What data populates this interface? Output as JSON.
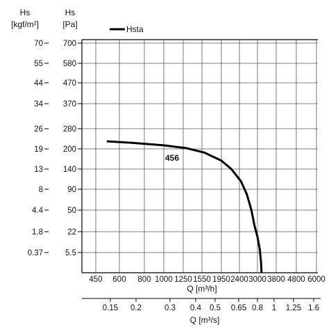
{
  "chart_data": {
    "type": "line",
    "title": "",
    "legend": {
      "label": "Hsta",
      "placement": "top-left"
    },
    "model_label": "456",
    "left_axis": {
      "unit_name": "Hs",
      "unit": "[kgf/m²]",
      "ticks": [
        "70",
        "55",
        "44",
        "34",
        "26",
        "19",
        "13",
        "8",
        "4.4",
        "1.8",
        "0.37"
      ]
    },
    "right_axis": {
      "unit_name": "Hs",
      "unit": "[Pa]",
      "ticks": [
        "700",
        "580",
        "470",
        "370",
        "280",
        "200",
        "140",
        "90",
        "50",
        "22",
        "5.5"
      ]
    },
    "x_axis": {
      "label": "Q [m³/h]",
      "ticks": [
        "450",
        "600",
        "800",
        "1000",
        "1250",
        "1550",
        "1950",
        "2400",
        "3000",
        "3800",
        "4800",
        "6000"
      ]
    },
    "x_axis_secondary": {
      "label": "Q [m³/s]",
      "ticks": [
        "0.15",
        "0.2",
        "0.3",
        "0.4",
        "0.5",
        "0.65",
        "0.8",
        "1",
        "1.25",
        "1.6"
      ]
    },
    "grid": true,
    "series": [
      {
        "name": "Hsta",
        "color": "#000000",
        "x": [
          520,
          700,
          1000,
          1300,
          1600,
          1950,
          2200,
          2450,
          2650,
          2800,
          2900,
          3000,
          3100,
          3150,
          3175
        ],
        "y": [
          230,
          224,
          214,
          203,
          189,
          165,
          140,
          110,
          80,
          50,
          30,
          18,
          8,
          3,
          0
        ]
      }
    ]
  }
}
